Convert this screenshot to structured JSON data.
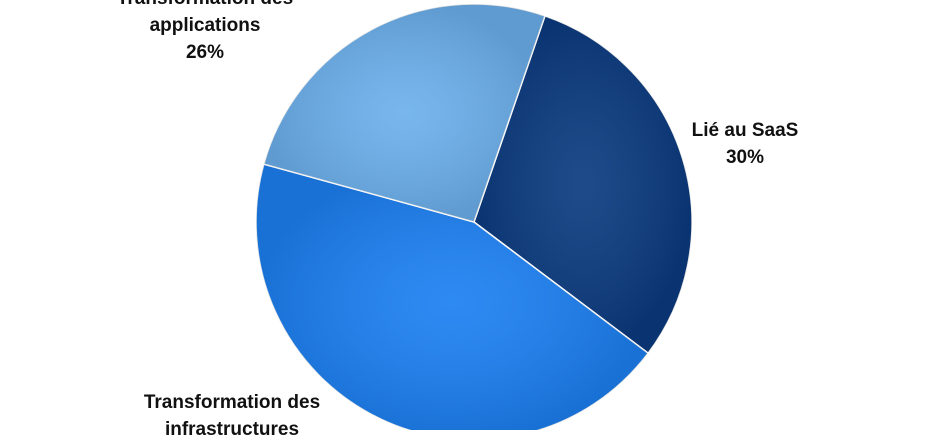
{
  "chart_data": {
    "type": "pie",
    "categories": [
      "Lié au SaaS",
      "Transformation des infrastructures",
      "Transformation des applications"
    ],
    "values": [
      30,
      44,
      26
    ],
    "value_labels": [
      "30%",
      null,
      "26%"
    ],
    "colors": [
      "#0b3b80",
      "#1c80f2",
      "#6cb0ec"
    ]
  }
}
